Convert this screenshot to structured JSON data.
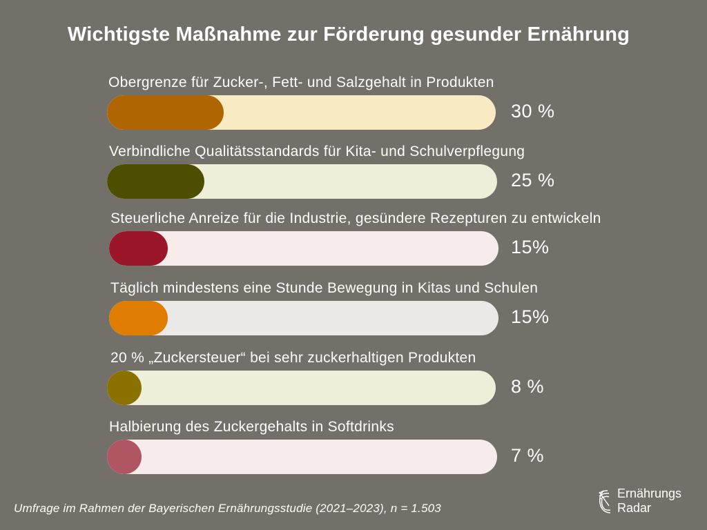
{
  "chart_data": {
    "type": "bar",
    "orientation": "horizontal",
    "title": "Wichtigste Maßnahme zur Förderung gesunder Ernährung",
    "xlabel": "",
    "ylabel": "",
    "xlim": [
      0,
      100
    ],
    "grid": false,
    "legend": "none",
    "categories": [
      "Obergrenze für Zucker-, Fett- und Salzgehalt in Produkten",
      "Verbindliche Qualitätsstandards für Kita- und Schulverpflegung",
      "Steuerliche Anreize für die Industrie, gesündere Rezepturen zu entwickeln",
      "Täglich mindestens eine Stunde Bewegung in Kitas und Schulen",
      "20 % „Zuckersteuer“ bei sehr zuckerhaltigen Produkten",
      "Halbierung des Zuckergehalts in Softdrinks"
    ],
    "values": [
      30,
      25,
      15,
      15,
      8,
      7
    ],
    "value_labels": [
      "30 %",
      "25 %",
      "15%",
      "15%",
      "8 %",
      "7 %"
    ],
    "unit": "%",
    "colors": {
      "fill": [
        "#b06503",
        "#4d4e00",
        "#9a1628",
        "#de7d00",
        "#8b7100",
        "#b05562"
      ],
      "track": [
        "#f8eac2",
        "#edefd8",
        "#f6ecec",
        "#eae9e7",
        "#edefd8",
        "#f6ecec"
      ]
    }
  },
  "footnote": "Umfrage im Rahmen der Bayerischen Ernährungsstudie (2021–2023), n = 1.503",
  "logo": {
    "icon": "radar-arc-icon",
    "line1": "Ernährungs",
    "line2": "Radar"
  },
  "colors": {
    "background": "#736f69",
    "text": "#ffffff"
  }
}
